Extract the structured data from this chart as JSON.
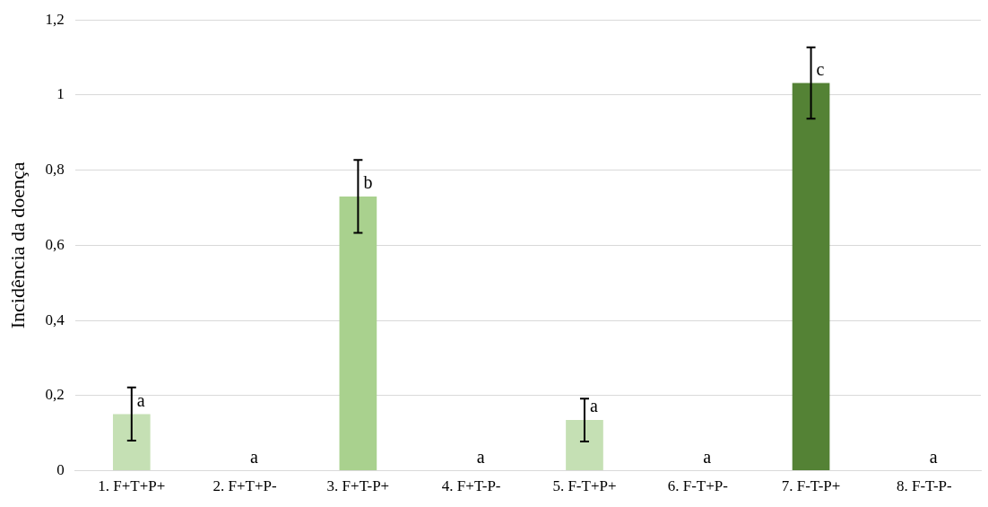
{
  "chart_data": {
    "type": "bar",
    "ylabel": "Incidência da doença",
    "categories": [
      "1. F+T+P+",
      "2. F+T+P-",
      "3. F+T-P+",
      "4. F+T-P-",
      "5. F-T+P+",
      "6. F-T+P-",
      "7. F-T-P+",
      "8. F-T-P-"
    ],
    "values": [
      0.151,
      0,
      0.73,
      0,
      0.135,
      0,
      1.032,
      0
    ],
    "errors": [
      0.071,
      null,
      0.097,
      null,
      0.057,
      null,
      0.095,
      null
    ],
    "colors": [
      "#c5e0b4",
      "#c5e0b4",
      "#a9d18e",
      "#a9d18e",
      "#c5e0b4",
      "#c5e0b4",
      "#548235",
      "#548235"
    ],
    "ylim": [
      0,
      1.2
    ],
    "yticks": [
      0,
      {
        "value": 0.2,
        "label": "0,2"
      },
      {
        "value": 0.4,
        "label": "0,4"
      },
      {
        "value": 0.6,
        "label": "0,6"
      },
      {
        "value": 0.8,
        "label": "0,8"
      },
      1,
      {
        "value": 1.2,
        "label": "1,2"
      }
    ],
    "grid": "y",
    "annotations": [
      {
        "text": "a",
        "x": "1. F+T+P+",
        "y": 0.151
      },
      {
        "text": "a",
        "x": "2. F+T+P-",
        "y": 0
      },
      {
        "text": "b",
        "x": "3. F+T-P+",
        "y": 0.73
      },
      {
        "text": "a",
        "x": "4. F+T-P-",
        "y": 0
      },
      {
        "text": "a",
        "x": "5. F-T+P+",
        "y": 0.135
      },
      {
        "text": "a",
        "x": "6. F-T+P-",
        "y": 0
      },
      {
        "text": "c",
        "x": "7. F-T-P+",
        "y": 1.032
      },
      {
        "text": "a",
        "x": "8. F-T-P-",
        "y": 0
      }
    ]
  }
}
